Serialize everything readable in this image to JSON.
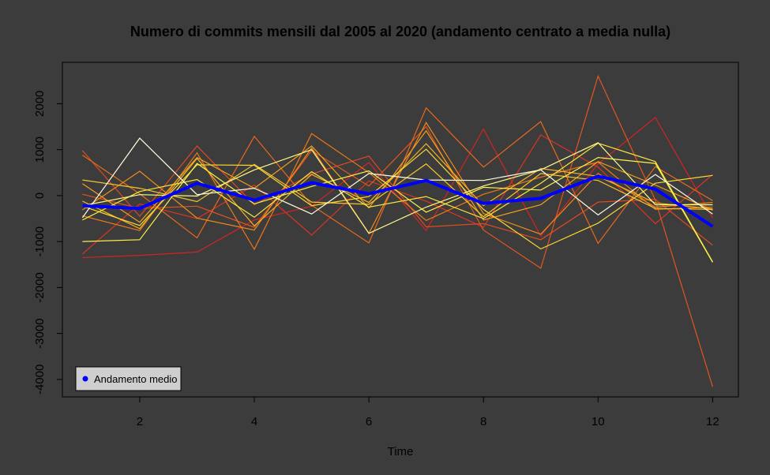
{
  "chart_data": {
    "type": "line",
    "title": "Numero di commits mensili dal 2005 al 2020 (andamento centrato a media nulla)",
    "xlabel": "Time",
    "ylabel": "",
    "xlim": [
      0.65,
      12.45
    ],
    "ylim": [
      -4380,
      2900
    ],
    "x_ticks": [
      2,
      4,
      6,
      8,
      10,
      12
    ],
    "y_ticks": [
      -4000,
      -3000,
      -2000,
      -1000,
      0,
      1000,
      2000
    ],
    "grid": false,
    "x": [
      1,
      2,
      3,
      4,
      5,
      6,
      7,
      8,
      9,
      10,
      11,
      12
    ],
    "series": [
      {
        "color": "#d32424",
        "values": [
          -1350,
          -1300,
          -1230,
          -530,
          -230,
          720,
          -760,
          1450,
          -880,
          690,
          1700,
          -480
        ]
      },
      {
        "color": "#dc3323",
        "values": [
          -1270,
          -180,
          -500,
          230,
          -860,
          320,
          -120,
          -690,
          1320,
          620,
          -610,
          460
        ]
      },
      {
        "color": "#e04a20",
        "values": [
          980,
          -450,
          1080,
          -200,
          470,
          860,
          -680,
          -610,
          -960,
          -140,
          -80,
          -1080
        ]
      },
      {
        "color": "#e3551e",
        "values": [
          30,
          -280,
          -230,
          -690,
          980,
          210,
          1500,
          -750,
          -1580,
          2600,
          -100,
          -4160
        ]
      },
      {
        "color": "#e8681c",
        "values": [
          880,
          40,
          -920,
          1290,
          -210,
          -1030,
          1910,
          620,
          1610,
          -1040,
          630,
          -110
        ]
      },
      {
        "color": "#ec781a",
        "values": [
          -440,
          -760,
          930,
          -1170,
          1350,
          500,
          -540,
          30,
          400,
          730,
          -300,
          -250
        ]
      },
      {
        "color": "#ef8a1a",
        "values": [
          -310,
          530,
          -490,
          -750,
          1040,
          -820,
          1590,
          -390,
          -840,
          480,
          -250,
          -150
        ]
      },
      {
        "color": "#f2a01e",
        "values": [
          260,
          -580,
          830,
          160,
          1080,
          -270,
          1410,
          -530,
          -200,
          740,
          230,
          -320
        ]
      },
      {
        "color": "#f4b225",
        "values": [
          -120,
          -720,
          810,
          -660,
          460,
          -150,
          1130,
          -220,
          590,
          420,
          -160,
          -290
        ]
      },
      {
        "color": "#f7c52d",
        "values": [
          340,
          160,
          -130,
          680,
          -140,
          -190,
          690,
          -460,
          480,
          330,
          -280,
          -300
        ]
      },
      {
        "color": "#f9d734",
        "values": [
          -230,
          -650,
          670,
          660,
          -220,
          -20,
          1010,
          -300,
          -1160,
          -600,
          270,
          440
        ]
      },
      {
        "color": "#fbe53c",
        "values": [
          -530,
          90,
          350,
          -470,
          520,
          -250,
          -20,
          -500,
          270,
          1140,
          740,
          -1440
        ]
      },
      {
        "color": "#fcf04a",
        "values": [
          -1000,
          -960,
          700,
          -180,
          200,
          540,
          -360,
          180,
          120,
          830,
          700,
          -1450
        ]
      },
      {
        "color": "#fef988",
        "values": [
          -220,
          20,
          -10,
          560,
          1000,
          -820,
          -250,
          210,
          560,
          1150,
          -200,
          -200
        ]
      },
      {
        "color": "#fffde2",
        "values": [
          -480,
          1250,
          20,
          160,
          -400,
          480,
          340,
          330,
          560,
          -420,
          460,
          -400
        ]
      }
    ],
    "mean_series": {
      "name": "Andamento medio",
      "color": "#0000ff",
      "values": [
        -220,
        -280,
        270,
        -100,
        280,
        40,
        330,
        -170,
        -60,
        420,
        140,
        -670
      ]
    },
    "legend": {
      "placement": "bottom-left",
      "label": "Andamento medio",
      "color": "#0000ff"
    }
  }
}
